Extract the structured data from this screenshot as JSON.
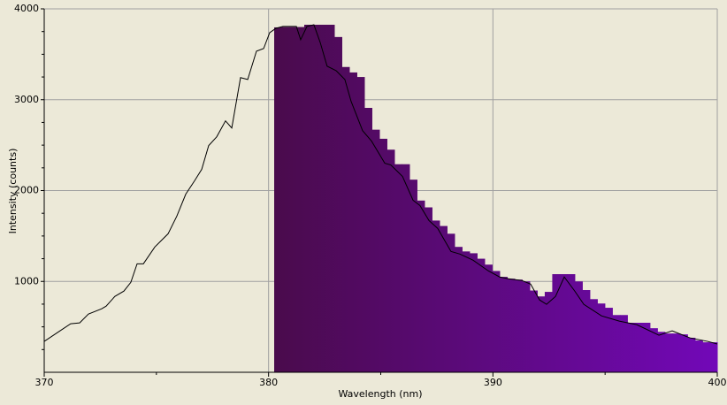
{
  "chart_data": {
    "type": "spectrum",
    "x_label": "Wavelength (nm)",
    "y_label": "Intensity (counts)",
    "xlim": [
      370,
      400
    ],
    "ylim": [
      0,
      4000
    ],
    "xticks": [
      370,
      380,
      390,
      400
    ],
    "yticks": [
      1000,
      2000,
      3000,
      4000
    ],
    "xminor_ticks": [
      375,
      385,
      395
    ],
    "yminor_ticks": [
      250,
      500,
      750,
      1250,
      1500,
      1750,
      2250,
      2500,
      2750,
      3250,
      3500,
      3750
    ],
    "grid": true,
    "background": "#ece9d8",
    "grid_color": "#a0a0a0",
    "line": {
      "color": "#000000",
      "x": [
        370,
        370.59,
        371.18,
        371.58,
        371.97,
        372.56,
        372.76,
        373.15,
        373.55,
        373.86,
        374.14,
        374.42,
        374.93,
        375.52,
        375.91,
        376.31,
        376.7,
        377.02,
        377.33,
        377.69,
        378.08,
        378.36,
        378.75,
        379.07,
        379.46,
        379.78,
        380.05,
        380.33,
        380.64,
        381.24,
        381.43,
        381.71,
        382.02,
        382.3,
        382.61,
        383.01,
        383.4,
        383.68,
        384.19,
        384.59,
        385.18,
        385.45,
        385.97,
        386.44,
        386.75,
        387.15,
        387.54,
        388.13,
        388.53,
        389.12,
        389.79,
        390.3,
        390.7,
        391.29,
        391.68,
        392.08,
        392.39,
        392.79,
        393.18,
        393.65,
        394.05,
        394.84,
        395.63,
        396.41,
        397.4,
        397.99,
        398.78,
        399.57,
        400
      ],
      "values": [
        340,
        437,
        534,
        544,
        641,
        699,
        728,
        835,
        893,
        990,
        1194,
        1194,
        1379,
        1524,
        1718,
        1961,
        2107,
        2233,
        2495,
        2592,
        2767,
        2689,
        3243,
        3223,
        3534,
        3563,
        3738,
        3786,
        3806,
        3806,
        3660,
        3806,
        3825,
        3631,
        3369,
        3320,
        3223,
        2981,
        2660,
        2544,
        2301,
        2282,
        2155,
        1893,
        1835,
        1670,
        1583,
        1330,
        1301,
        1233,
        1117,
        1049,
        1029,
        1010,
        971,
        796,
        748,
        835,
        1049,
        893,
        748,
        621,
        563,
        524,
        408,
        456,
        379,
        340,
        311
      ]
    },
    "histogram": {
      "colors": [
        "#4a0b4c",
        "#7208b8"
      ],
      "bins": [
        380.25,
        380.585,
        380.92,
        381.255,
        381.59,
        381.925,
        382.26,
        382.595,
        382.93,
        383.265,
        383.6,
        383.935,
        384.27,
        384.605,
        384.94,
        385.275,
        385.61,
        385.945,
        386.28,
        386.615,
        386.95,
        387.285,
        387.62,
        387.955,
        388.29,
        388.625,
        388.96,
        389.295,
        389.63,
        389.965,
        390.3,
        390.635,
        390.97,
        391.305,
        391.64,
        391.975,
        392.31,
        392.645,
        392.98,
        393.315,
        393.65,
        393.985,
        394.32,
        394.655,
        394.99,
        395.325,
        395.66,
        395.995,
        396.33,
        396.665,
        397,
        397.335,
        397.67,
        398.005,
        398.34,
        398.675,
        399.01,
        399.345,
        399.68,
        400
      ],
      "counts": [
        3796,
        3800,
        3800,
        3800,
        3825,
        3825,
        3825,
        3825,
        3690,
        3360,
        3300,
        3250,
        2910,
        2670,
        2570,
        2450,
        2290,
        2290,
        2120,
        1890,
        1815,
        1670,
        1610,
        1525,
        1380,
        1330,
        1310,
        1250,
        1185,
        1115,
        1050,
        1030,
        1020,
        1000,
        900,
        835,
        885,
        1080,
        1080,
        1080,
        1000,
        905,
        805,
        757,
        710,
        630,
        630,
        545,
        545,
        545,
        485,
        445,
        427,
        427,
        417,
        380,
        350,
        330,
        330
      ]
    }
  }
}
